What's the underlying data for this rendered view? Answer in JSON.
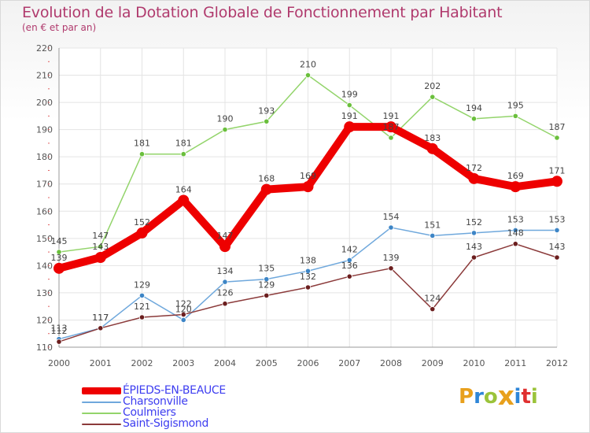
{
  "title": "Evolution de la Dotation Globale de Fonctionnement par Habitant",
  "subtitle": "(en € et par an)",
  "brand": {
    "letters": [
      "P",
      "r",
      "o",
      "x",
      "i",
      "t",
      "i"
    ],
    "colors": [
      "#e8a01c",
      "#2e86d8",
      "#9bc33a",
      "#e8a01c",
      "#2e86d8",
      "#e03030",
      "#9bc33a"
    ]
  },
  "chart_data": {
    "type": "line",
    "title": "Evolution de la Dotation Globale de Fonctionnement par Habitant",
    "subtitle": "(en € et par an)",
    "xlabel": "",
    "ylabel": "",
    "x": [
      "2000",
      "2001",
      "2002",
      "2003",
      "2004",
      "2005",
      "2006",
      "2007",
      "2008",
      "2009",
      "2010",
      "2011",
      "2012"
    ],
    "ylim": [
      110,
      220
    ],
    "yticks": [
      110,
      120,
      130,
      140,
      150,
      160,
      170,
      180,
      190,
      200,
      210,
      220
    ],
    "grid": true,
    "legend_position": "bottom-left",
    "series": [
      {
        "name": "ÉPIEDS-EN-BEAUCE",
        "color": "#ee0000",
        "emphasis": true,
        "values": [
          139,
          143,
          152,
          164,
          147,
          168,
          169,
          191,
          191,
          183,
          172,
          169,
          171
        ],
        "labels": [
          "139",
          "143",
          "152",
          "164",
          "147",
          "168",
          "169",
          "191",
          "191",
          "183",
          "172",
          "169",
          "171"
        ]
      },
      {
        "name": "Charsonville",
        "color": "#6fa8dc",
        "marker": "#3d85c6",
        "values": [
          113,
          117,
          129,
          120,
          134,
          135,
          138,
          142,
          154,
          151,
          152,
          153,
          153
        ],
        "labels": [
          "113",
          "117",
          "129",
          "120",
          "134",
          "135",
          "138",
          "142",
          "154",
          "151",
          "152",
          "153",
          "153"
        ]
      },
      {
        "name": "Coulmiers",
        "color": "#93d46b",
        "marker": "#6abf3c",
        "values": [
          145,
          147,
          181,
          181,
          190,
          193,
          210,
          199,
          187,
          202,
          194,
          195,
          187
        ],
        "labels": [
          "145",
          "147",
          "181",
          "181",
          "190",
          "193",
          "210",
          "199",
          "187",
          "202",
          "194",
          "195",
          "187"
        ]
      },
      {
        "name": "Saint-Sigismond",
        "color": "#8b3a3a",
        "marker": "#6b1e1e",
        "values": [
          112,
          117,
          121,
          122,
          126,
          129,
          132,
          136,
          139,
          124,
          143,
          148,
          143
        ],
        "labels": [
          "112",
          "117",
          "121",
          "122",
          "126",
          "129",
          "132",
          "136",
          "139",
          "124",
          "143",
          "148",
          "143"
        ]
      }
    ]
  }
}
